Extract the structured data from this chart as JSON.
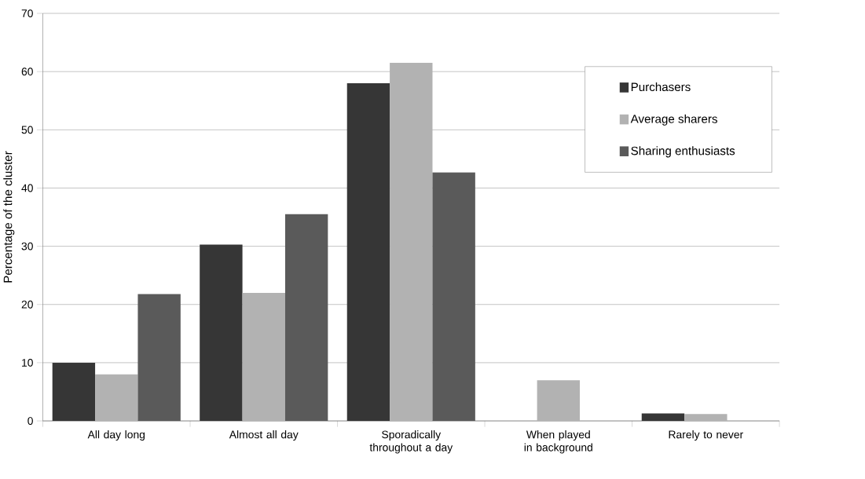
{
  "chart_data": {
    "type": "bar",
    "ylabel": "Percentage of the cluster",
    "categories": [
      "All day long",
      "Almost all day",
      "Sporadically throughout a day",
      "When played in background",
      "Rarely to never"
    ],
    "series": [
      {
        "name": "Purchasers",
        "color": "#363636",
        "values": [
          10,
          30.3,
          58,
          0,
          1.3
        ]
      },
      {
        "name": "Average sharers",
        "color": "#b2b2b2",
        "values": [
          8,
          22,
          61.5,
          7,
          1.2
        ]
      },
      {
        "name": "Sharing enthusiasts",
        "color": "#5a5a5a",
        "values": [
          21.8,
          35.5,
          42.7,
          0,
          0
        ]
      }
    ],
    "ylim": [
      0,
      70
    ],
    "yticks": [
      0,
      10,
      20,
      30,
      40,
      50,
      60,
      70
    ],
    "grid": "y",
    "legend": "top right"
  }
}
